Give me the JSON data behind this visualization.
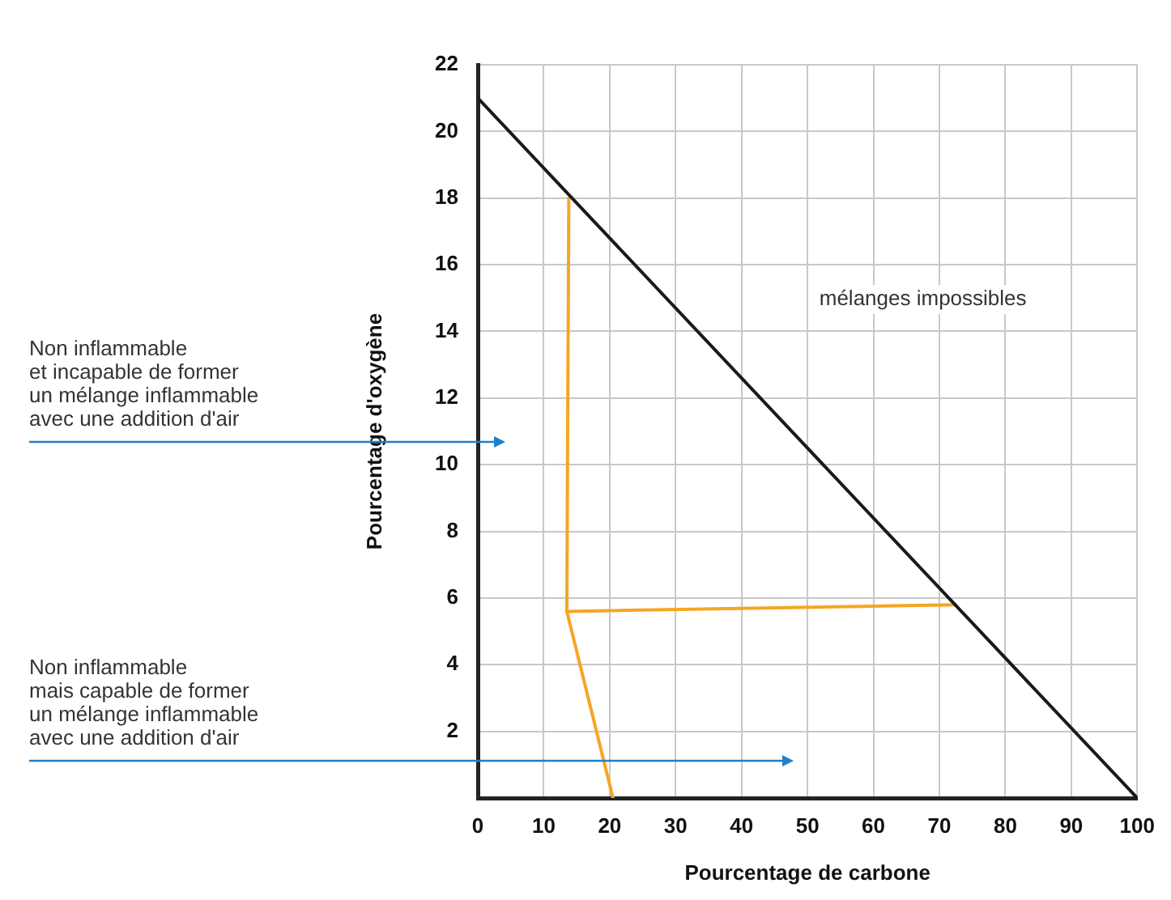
{
  "chart_data": {
    "type": "line",
    "xlabel": "Pourcentage de carbone",
    "ylabel": "Pourcentage d'oxygène",
    "series": [
      {
        "color": "#1a1a1a",
        "x": [
          0,
          100
        ],
        "values": [
          21,
          0
        ]
      },
      {
        "color": "#f5a623",
        "x": [
          13.8,
          13.5,
          72.5
        ],
        "values": [
          18,
          5.6,
          5.8
        ]
      },
      {
        "color": "#f5a623",
        "x": [
          13.5,
          20.5
        ],
        "values": [
          5.6,
          0
        ]
      }
    ],
    "xlim": [
      0,
      100
    ],
    "xticks": [
      0,
      10,
      20,
      30,
      40,
      50,
      60,
      70,
      80,
      90,
      100
    ],
    "ylim": [
      0,
      22
    ],
    "yticks": [
      2,
      4,
      6,
      8,
      10,
      12,
      14,
      16,
      18,
      20,
      22
    ],
    "grid": true,
    "legend": false,
    "marker": "none",
    "line_style": "solid",
    "annotations": [
      "mélanges impossibles",
      "Non inflammable\net incapable de former\nun mélange inflammable\navec une addition d'air",
      "Non inflammable\nmais capable de former\nun mélange inflammable\navec une addition d'air"
    ]
  }
}
